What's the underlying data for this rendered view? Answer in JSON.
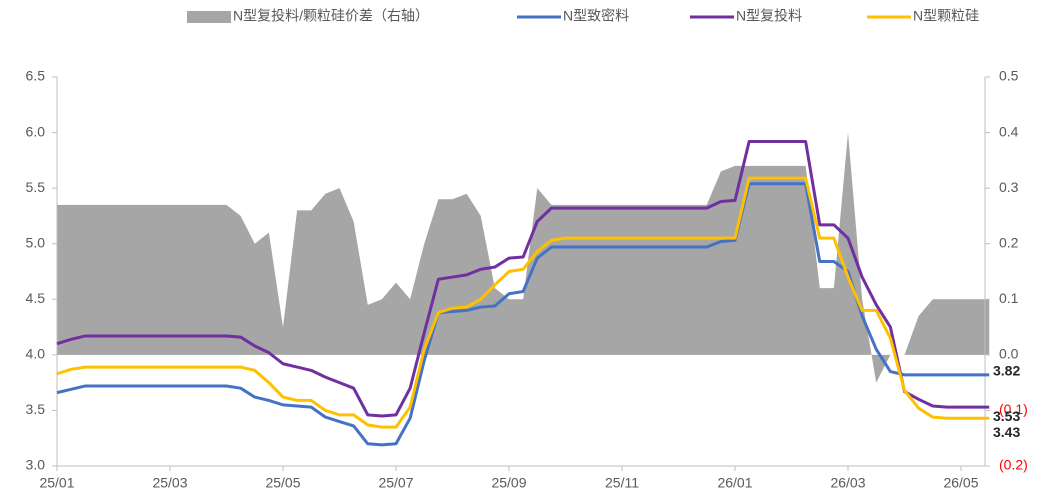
{
  "chart_data": {
    "type": "line",
    "categories": [
      "25/01",
      null,
      null,
      null,
      null,
      null,
      null,
      null,
      "25/03",
      null,
      null,
      null,
      null,
      null,
      null,
      null,
      "25/05",
      null,
      null,
      null,
      null,
      null,
      null,
      null,
      "25/07",
      null,
      null,
      null,
      null,
      null,
      null,
      null,
      "25/09",
      null,
      null,
      null,
      null,
      null,
      null,
      null,
      "25/11",
      null,
      null,
      null,
      null,
      null,
      null,
      null,
      "26/01",
      null,
      null,
      null,
      null,
      null,
      null,
      null,
      "26/03",
      null,
      null,
      null,
      null,
      null,
      null,
      null,
      "26/05",
      null,
      null
    ],
    "series": [
      {
        "name": "N型复投料/颗粒硅价差（右轴）",
        "color": "#a6a6a6",
        "kind": "area",
        "axis": "y2",
        "values": [
          0.27,
          0.27,
          0.27,
          0.27,
          0.27,
          0.27,
          0.27,
          0.27,
          0.27,
          0.27,
          0.27,
          0.27,
          0.27,
          0.25,
          0.2,
          0.22,
          0.05,
          0.26,
          0.26,
          0.29,
          0.3,
          0.24,
          0.09,
          0.1,
          0.13,
          0.1,
          0.2,
          0.28,
          0.28,
          0.29,
          0.25,
          0.12,
          0.1,
          0.1,
          0.3,
          0.27,
          0.27,
          0.27,
          0.27,
          0.27,
          0.27,
          0.27,
          0.27,
          0.27,
          0.27,
          0.27,
          0.27,
          0.33,
          0.34,
          0.34,
          0.34,
          0.34,
          0.34,
          0.34,
          0.12,
          0.12,
          0.4,
          0.1,
          -0.05,
          0.0,
          0.0,
          0.07,
          0.1,
          0.1,
          0.1,
          0.1,
          0.1
        ]
      },
      {
        "name": "N型致密料",
        "color": "#4472c4",
        "kind": "line",
        "last_label": "3.82",
        "values": [
          3.66,
          3.69,
          3.72,
          3.72,
          3.72,
          3.72,
          3.72,
          3.72,
          3.72,
          3.72,
          3.72,
          3.72,
          3.72,
          3.7,
          3.62,
          3.59,
          3.55,
          3.54,
          3.53,
          3.44,
          3.4,
          3.36,
          3.2,
          3.19,
          3.2,
          3.43,
          3.95,
          4.38,
          4.39,
          4.4,
          4.43,
          4.44,
          4.55,
          4.57,
          4.87,
          4.97,
          4.97,
          4.97,
          4.97,
          4.97,
          4.97,
          4.97,
          4.97,
          4.97,
          4.97,
          4.97,
          4.97,
          5.02,
          5.03,
          5.54,
          5.54,
          5.54,
          5.54,
          5.54,
          4.84,
          4.84,
          4.75,
          4.35,
          4.05,
          3.85,
          3.82,
          3.82,
          3.82,
          3.82,
          3.82,
          3.82,
          3.82
        ]
      },
      {
        "name": "N型复投料",
        "color": "#7030a0",
        "kind": "line",
        "last_label": "3.53",
        "values": [
          4.1,
          4.14,
          4.17,
          4.17,
          4.17,
          4.17,
          4.17,
          4.17,
          4.17,
          4.17,
          4.17,
          4.17,
          4.17,
          4.16,
          4.08,
          4.02,
          3.92,
          3.89,
          3.86,
          3.8,
          3.75,
          3.7,
          3.46,
          3.45,
          3.46,
          3.7,
          4.2,
          4.68,
          4.7,
          4.72,
          4.77,
          4.79,
          4.87,
          4.88,
          5.2,
          5.32,
          5.32,
          5.32,
          5.32,
          5.32,
          5.32,
          5.32,
          5.32,
          5.32,
          5.32,
          5.32,
          5.32,
          5.38,
          5.39,
          5.92,
          5.92,
          5.92,
          5.92,
          5.92,
          5.17,
          5.17,
          5.05,
          4.7,
          4.45,
          4.25,
          3.67,
          3.6,
          3.54,
          3.53,
          3.53,
          3.53,
          3.53
        ]
      },
      {
        "name": "N型颗粒硅",
        "color": "#ffc000",
        "kind": "line",
        "last_label": "3.43",
        "values": [
          3.83,
          3.87,
          3.89,
          3.89,
          3.89,
          3.89,
          3.89,
          3.89,
          3.89,
          3.89,
          3.89,
          3.89,
          3.89,
          3.89,
          3.86,
          3.75,
          3.62,
          3.59,
          3.59,
          3.5,
          3.46,
          3.46,
          3.37,
          3.35,
          3.35,
          3.53,
          4.05,
          4.38,
          4.42,
          4.43,
          4.5,
          4.63,
          4.75,
          4.77,
          4.93,
          5.03,
          5.05,
          5.05,
          5.05,
          5.05,
          5.05,
          5.05,
          5.05,
          5.05,
          5.05,
          5.05,
          5.05,
          5.05,
          5.05,
          5.59,
          5.59,
          5.59,
          5.59,
          5.59,
          5.05,
          5.05,
          4.7,
          4.4,
          4.4,
          4.15,
          3.68,
          3.52,
          3.44,
          3.43,
          3.43,
          3.43,
          3.43
        ]
      }
    ],
    "ylim": [
      3.0,
      6.5
    ],
    "yticks": [
      {
        "value": 3,
        "label": "3.0"
      },
      3.5,
      {
        "value": 4,
        "label": "4.0"
      },
      4.5,
      {
        "value": 5,
        "label": "5.0"
      },
      5.5,
      {
        "value": 6,
        "label": "6.0"
      },
      6.5
    ],
    "y2lim": [
      -0.2,
      0.5
    ],
    "y2ticks": [
      {
        "value": -0.2,
        "label": "(0.2)",
        "color": "#ff0000"
      },
      {
        "value": -0.1,
        "label": "(0.1)",
        "color": "#ff0000"
      },
      {
        "value": 0,
        "label": "0.0"
      },
      0.1,
      0.2,
      0.3,
      0.4,
      0.5
    ],
    "legend": "top"
  }
}
